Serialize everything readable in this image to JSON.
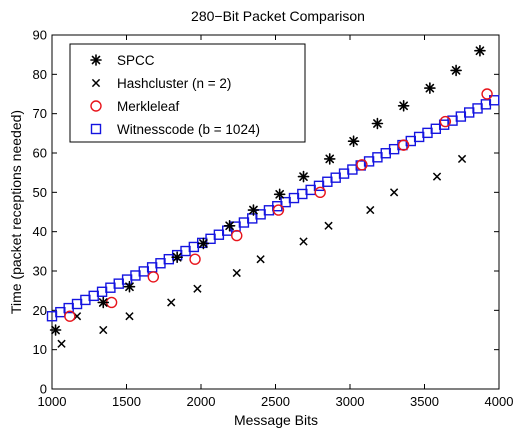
{
  "chart_data": {
    "type": "scatter",
    "title": "280−Bit Packet Comparison",
    "xlabel": "Message Bits",
    "ylabel": "Time (packet receptions needed)",
    "xlim": [
      1000,
      4000
    ],
    "ylim": [
      0,
      90
    ],
    "xticks": [
      1000,
      1500,
      2000,
      2500,
      3000,
      3500,
      4000
    ],
    "yticks": [
      0,
      10,
      20,
      30,
      40,
      50,
      60,
      70,
      80,
      90
    ],
    "grid": false,
    "legend_position": "top-left",
    "series": [
      {
        "name": "SPCC",
        "marker": "asterisk",
        "color": "#000000",
        "x": [
          1024,
          1344,
          1520,
          1840,
          2016,
          2192,
          2352,
          2528,
          2688,
          2864,
          3024,
          3184,
          3360,
          3536,
          3712,
          3872
        ],
        "y": [
          15,
          22,
          26,
          33.5,
          37,
          41.5,
          45.5,
          49.5,
          54,
          58.5,
          63,
          67.5,
          72,
          76.5,
          81,
          86
        ]
      },
      {
        "name": "Hashcluster (n = 2)",
        "marker": "x",
        "color": "#000000",
        "x": [
          1064,
          1168,
          1344,
          1520,
          1800,
          1976,
          2240,
          2400,
          2688,
          2856,
          3136,
          3296,
          3584,
          3752
        ],
        "y": [
          11.5,
          18.5,
          15,
          18.5,
          22,
          25.5,
          29.5,
          33,
          37.5,
          41.5,
          45.5,
          50,
          54,
          58.5
        ]
      },
      {
        "name": "Merkleleaf",
        "marker": "circle",
        "color": "#e8141b",
        "x": [
          1120,
          1400,
          1680,
          1960,
          2240,
          2520,
          2800,
          3080,
          3360,
          3640,
          3920
        ],
        "y": [
          18.5,
          22,
          28.5,
          33,
          39,
          45.5,
          50,
          57,
          62,
          68,
          75
        ]
      },
      {
        "name": "Witnesscode (b = 1024)",
        "marker": "square",
        "color": "#1414e0",
        "x_start": 1000,
        "x_end": 4000,
        "x_step": 56,
        "y_start": 18.5,
        "y_end": 74
      }
    ]
  }
}
